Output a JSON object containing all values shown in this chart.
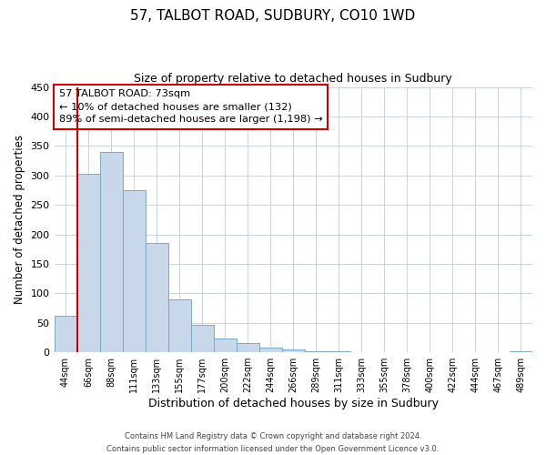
{
  "title": "57, TALBOT ROAD, SUDBURY, CO10 1WD",
  "subtitle": "Size of property relative to detached houses in Sudbury",
  "xlabel": "Distribution of detached houses by size in Sudbury",
  "ylabel": "Number of detached properties",
  "categories": [
    "44sqm",
    "66sqm",
    "88sqm",
    "111sqm",
    "133sqm",
    "155sqm",
    "177sqm",
    "200sqm",
    "222sqm",
    "244sqm",
    "266sqm",
    "289sqm",
    "311sqm",
    "333sqm",
    "355sqm",
    "378sqm",
    "400sqm",
    "422sqm",
    "444sqm",
    "467sqm",
    "489sqm"
  ],
  "values": [
    62,
    303,
    340,
    275,
    185,
    90,
    46,
    24,
    16,
    8,
    5,
    2,
    1,
    0,
    0,
    0,
    0,
    0,
    0,
    0,
    2
  ],
  "bar_color": "#c8d8ea",
  "bar_edge_color": "#7aaac8",
  "ylim": [
    0,
    450
  ],
  "yticks": [
    0,
    50,
    100,
    150,
    200,
    250,
    300,
    350,
    400,
    450
  ],
  "marker_color": "#cc0000",
  "annotation_title": "57 TALBOT ROAD: 73sqm",
  "annotation_line1": "← 10% of detached houses are smaller (132)",
  "annotation_line2": "89% of semi-detached houses are larger (1,198) →",
  "annotation_box_color": "#ffffff",
  "annotation_box_edge": "#cc0000",
  "footer1": "Contains HM Land Registry data © Crown copyright and database right 2024.",
  "footer2": "Contains public sector information licensed under the Open Government Licence v3.0.",
  "bg_color": "#ffffff",
  "grid_color": "#c8d4e4"
}
